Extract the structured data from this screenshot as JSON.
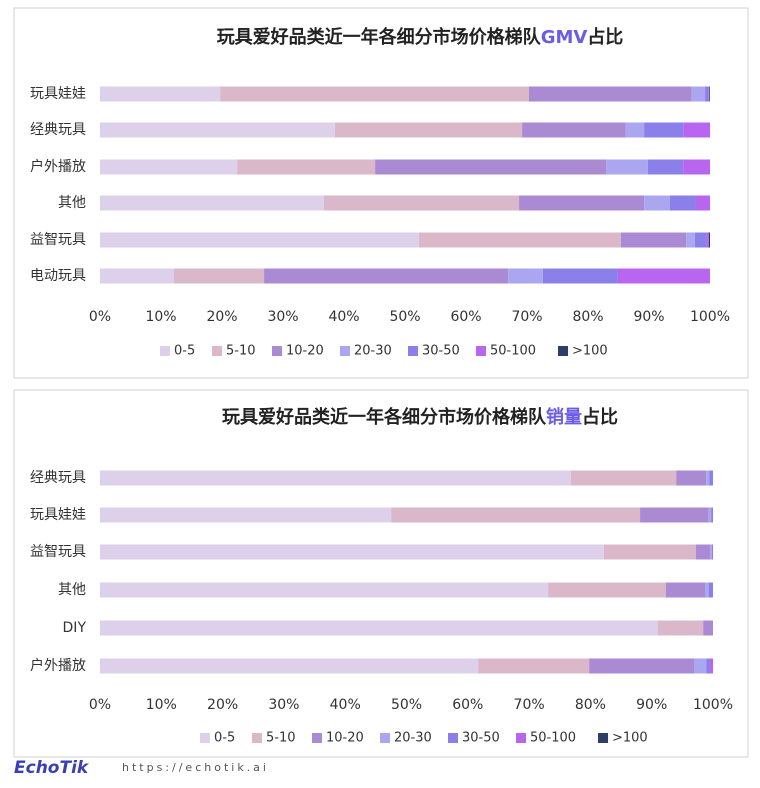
{
  "chart_data": [
    {
      "type": "bar",
      "orientation": "horizontal",
      "stacked": true,
      "title_parts": [
        "玩具爱好品类近一年各细分市场价格梯队",
        "GMV",
        "占比"
      ],
      "title_highlight_color": "#6b5ce7",
      "categories": [
        "玩具娃娃",
        "经典玩具",
        "户外播放",
        "其他",
        "益智玩具",
        "电动玩具"
      ],
      "xlim": [
        0,
        100
      ],
      "xticks": [
        {
          "value": 0,
          "label": "0%"
        },
        {
          "value": 10,
          "label": "10%"
        },
        {
          "value": 20,
          "label": "20%"
        },
        {
          "value": 30,
          "label": "30%"
        },
        {
          "value": 40,
          "label": "40%"
        },
        {
          "value": 50,
          "label": "50%"
        },
        {
          "value": 60,
          "label": "60%"
        },
        {
          "value": 70,
          "label": "70%"
        },
        {
          "value": 80,
          "label": "80%"
        },
        {
          "value": 90,
          "label": "90%"
        },
        {
          "value": 100,
          "label": "100%"
        }
      ],
      "series": [
        {
          "name": "0-5",
          "color": "#dcd0ea",
          "values": [
            19.7,
            38.5,
            22.5,
            36.7,
            52.3,
            12.1
          ]
        },
        {
          "name": "5-10",
          "color": "#dab7c9",
          "values": [
            50.6,
            30.7,
            22.6,
            32.0,
            33.1,
            14.8
          ]
        },
        {
          "name": "10-20",
          "color": "#a98ad3",
          "values": [
            26.7,
            17.0,
            37.9,
            20.5,
            10.7,
            40.0
          ]
        },
        {
          "name": "20-30",
          "color": "#aaa6ef",
          "values": [
            2.2,
            3.0,
            6.8,
            4.2,
            1.4,
            5.7
          ]
        },
        {
          "name": "30-50",
          "color": "#8b7fe9",
          "values": [
            0.6,
            6.4,
            5.8,
            4.3,
            2.0,
            12.3
          ]
        },
        {
          "name": "50-100",
          "color": "#b866f0",
          "values": [
            0.1,
            4.4,
            4.4,
            2.3,
            0.3,
            15.1
          ]
        },
        {
          "name": ">100",
          "color": "#2d3e6b",
          "values": [
            0.1,
            0,
            0,
            0,
            0.2,
            0
          ]
        }
      ]
    },
    {
      "type": "bar",
      "orientation": "horizontal",
      "stacked": true,
      "title_parts": [
        "玩具爱好品类近一年各细分市场价格梯队",
        "销量",
        "占比"
      ],
      "title_highlight_color": "#6b5ce7",
      "categories": [
        "经典玩具",
        "玩具娃娃",
        "益智玩具",
        "其他",
        "DIY",
        "户外播放"
      ],
      "xlim": [
        0,
        100
      ],
      "xticks": [
        {
          "value": 0,
          "label": "0%"
        },
        {
          "value": 10,
          "label": "10%"
        },
        {
          "value": 20,
          "label": "20%"
        },
        {
          "value": 30,
          "label": "30%"
        },
        {
          "value": 40,
          "label": "40%"
        },
        {
          "value": 50,
          "label": "50%"
        },
        {
          "value": 60,
          "label": "60%"
        },
        {
          "value": 70,
          "label": "70%"
        },
        {
          "value": 80,
          "label": "80%"
        },
        {
          "value": 90,
          "label": "90%"
        },
        {
          "value": 100,
          "label": "100%"
        }
      ],
      "series": [
        {
          "name": "0-5",
          "color": "#dcd0ea",
          "values": [
            76.8,
            47.5,
            82.2,
            73.1,
            91.0,
            61.7
          ]
        },
        {
          "name": "5-10",
          "color": "#dab7c9",
          "values": [
            17.2,
            40.6,
            15.0,
            19.2,
            7.4,
            18.1
          ]
        },
        {
          "name": "10-20",
          "color": "#a98ad3",
          "values": [
            4.9,
            11.2,
            2.3,
            6.4,
            1.6,
            17.1
          ]
        },
        {
          "name": "20-30",
          "color": "#aaa6ef",
          "values": [
            0.5,
            0.4,
            0.3,
            0.6,
            0,
            2.0
          ]
        },
        {
          "name": "30-50",
          "color": "#8b7fe9",
          "values": [
            0.6,
            0.3,
            0.2,
            0.7,
            0,
            0.6
          ]
        },
        {
          "name": "50-100",
          "color": "#b866f0",
          "values": [
            0,
            0,
            0,
            0,
            0,
            0.5
          ]
        },
        {
          "name": ">100",
          "color": "#2d3e6b",
          "values": [
            0,
            0,
            0,
            0,
            0,
            0
          ]
        }
      ]
    }
  ],
  "footer": {
    "logo": "EchoTik",
    "url": "https://echotik.ai"
  }
}
